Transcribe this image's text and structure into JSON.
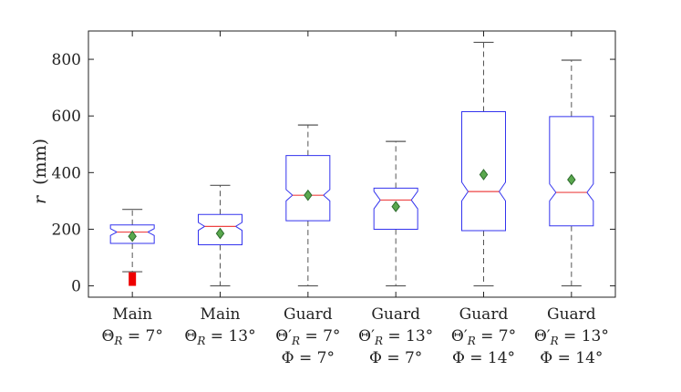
{
  "chart_data": {
    "type": "boxplot",
    "title": "",
    "xlabel": "",
    "ylabel": "r (mm)",
    "ylabel_var": "r",
    "ylabel_unit": "(mm)",
    "ylim": [
      -40,
      900
    ],
    "yticks": [
      0,
      200,
      400,
      600,
      800
    ],
    "categories": [
      {
        "lines": [
          "Main",
          "ΘR = 7°"
        ]
      },
      {
        "lines": [
          "Main",
          "ΘR = 13°"
        ]
      },
      {
        "lines": [
          "Guard",
          "Θ′R = 7°",
          "Φ = 7°"
        ]
      },
      {
        "lines": [
          "Guard",
          "Θ′R = 13°",
          "Φ = 7°"
        ]
      },
      {
        "lines": [
          "Guard",
          "Θ′R = 7°",
          "Φ = 14°"
        ]
      },
      {
        "lines": [
          "Guard",
          "Θ′R = 13°",
          "Φ = 14°"
        ]
      }
    ],
    "boxes": [
      {
        "whisker_low": 50,
        "q1": 150,
        "median": 190,
        "q3": 215,
        "whisker_high": 270,
        "mean": 175,
        "notch_low": 178,
        "notch_high": 202,
        "outliers_range": [
          0,
          48
        ]
      },
      {
        "whisker_low": 0,
        "q1": 145,
        "median": 210,
        "q3": 252,
        "whisker_high": 355,
        "mean": 185,
        "notch_low": 196,
        "notch_high": 224,
        "outliers_range": null
      },
      {
        "whisker_low": 0,
        "q1": 230,
        "median": 320,
        "q3": 460,
        "whisker_high": 568,
        "mean": 320,
        "notch_low": 300,
        "notch_high": 340,
        "outliers_range": null
      },
      {
        "whisker_low": 0,
        "q1": 200,
        "median": 303,
        "q3": 345,
        "whisker_high": 510,
        "mean": 280,
        "notch_low": 272,
        "notch_high": 334,
        "outliers_range": null
      },
      {
        "whisker_low": 0,
        "q1": 195,
        "median": 333,
        "q3": 615,
        "whisker_high": 860,
        "mean": 393,
        "notch_low": 300,
        "notch_high": 366,
        "outliers_range": null
      },
      {
        "whisker_low": 0,
        "q1": 212,
        "median": 330,
        "q3": 598,
        "whisker_high": 797,
        "mean": 375,
        "notch_low": 300,
        "notch_high": 360,
        "outliers_range": null
      }
    ],
    "colors": {
      "box": "#3333ee",
      "median": "#ee4444",
      "whisker": "#555555",
      "outlier": "#ee0000",
      "mean_fill": "#5aa84e",
      "mean_stroke": "#2e6b2e",
      "axis": "#222222"
    }
  }
}
